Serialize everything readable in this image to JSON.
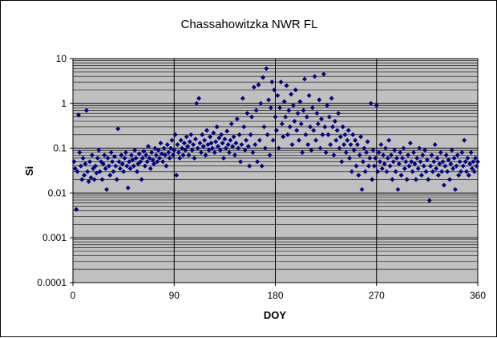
{
  "chart_data": {
    "type": "scatter",
    "title": "Chassahowitzka NWR FL",
    "xlabel": "DOY",
    "ylabel": "Si",
    "xlim": [
      0,
      360
    ],
    "ylim": [
      0.0001,
      10
    ],
    "y_scale": "log",
    "grid": "major and minor horizontal, major vertical",
    "plot_background": "#c0c0c0",
    "marker_color": "#000080",
    "marker_shape": "diamond",
    "x_ticks": [
      "0",
      "90",
      "180",
      "270",
      "360"
    ],
    "y_ticks": [
      "0.0001",
      "0.001",
      "0.01",
      "0.1",
      "1",
      "10"
    ],
    "trend_description": "Values mostly between 0.01 and 0.3 across the year, rising to a peak of 1-6 around DOY 170-230, then falling back after DOY 260.",
    "points": [
      [
        1,
        0.05
      ],
      [
        2,
        0.035
      ],
      [
        3,
        0.0043
      ],
      [
        4,
        0.03
      ],
      [
        5,
        0.55
      ],
      [
        6,
        0.08
      ],
      [
        7,
        0.04
      ],
      [
        8,
        0.02
      ],
      [
        9,
        0.06
      ],
      [
        10,
        0.025
      ],
      [
        11,
        0.045
      ],
      [
        12,
        0.7
      ],
      [
        13,
        0.03
      ],
      [
        14,
        0.018
      ],
      [
        15,
        0.05
      ],
      [
        16,
        0.022
      ],
      [
        17,
        0.07
      ],
      [
        18,
        0.035
      ],
      [
        19,
        0.02
      ],
      [
        20,
        0.04
      ],
      [
        21,
        0.028
      ],
      [
        22,
        0.06
      ],
      [
        23,
        0.09
      ],
      [
        24,
        0.03
      ],
      [
        25,
        0.05
      ],
      [
        26,
        0.02
      ],
      [
        27,
        0.045
      ],
      [
        28,
        0.07
      ],
      [
        29,
        0.035
      ],
      [
        30,
        0.012
      ],
      [
        31,
        0.06
      ],
      [
        32,
        0.04
      ],
      [
        33,
        0.025
      ],
      [
        34,
        0.08
      ],
      [
        35,
        0.05
      ],
      [
        36,
        0.03
      ],
      [
        37,
        0.065
      ],
      [
        38,
        0.04
      ],
      [
        39,
        0.02
      ],
      [
        40,
        0.27
      ],
      [
        41,
        0.05
      ],
      [
        42,
        0.035
      ],
      [
        43,
        0.07
      ],
      [
        44,
        0.045
      ],
      [
        45,
        0.03
      ],
      [
        46,
        0.06
      ],
      [
        47,
        0.08
      ],
      [
        48,
        0.04
      ],
      [
        49,
        0.013
      ],
      [
        50,
        0.05
      ],
      [
        51,
        0.035
      ],
      [
        52,
        0.07
      ],
      [
        53,
        0.055
      ],
      [
        54,
        0.04
      ],
      [
        55,
        0.09
      ],
      [
        56,
        0.06
      ],
      [
        57,
        0.03
      ],
      [
        58,
        0.045
      ],
      [
        59,
        0.075
      ],
      [
        60,
        0.05
      ],
      [
        61,
        0.02
      ],
      [
        62,
        0.06
      ],
      [
        63,
        0.085
      ],
      [
        64,
        0.04
      ],
      [
        65,
        0.07
      ],
      [
        66,
        0.05
      ],
      [
        67,
        0.11
      ],
      [
        68,
        0.06
      ],
      [
        69,
        0.035
      ],
      [
        70,
        0.08
      ],
      [
        71,
        0.055
      ],
      [
        72,
        0.045
      ],
      [
        73,
        0.1
      ],
      [
        74,
        0.07
      ],
      [
        75,
        0.05
      ],
      [
        76,
        0.09
      ],
      [
        77,
        0.06
      ],
      [
        78,
        0.13
      ],
      [
        79,
        0.075
      ],
      [
        80,
        0.05
      ],
      [
        81,
        0.1
      ],
      [
        82,
        0.07
      ],
      [
        83,
        0.04
      ],
      [
        84,
        0.12
      ],
      [
        85,
        0.08
      ],
      [
        86,
        0.06
      ],
      [
        87,
        0.1
      ],
      [
        88,
        0.15
      ],
      [
        89,
        0.07
      ],
      [
        90,
        0.09
      ],
      [
        91,
        0.2
      ],
      [
        92,
        0.025
      ],
      [
        93,
        0.12
      ],
      [
        94,
        0.08
      ],
      [
        95,
        0.06
      ],
      [
        96,
        0.15
      ],
      [
        97,
        0.1
      ],
      [
        98,
        0.07
      ],
      [
        99,
        0.13
      ],
      [
        100,
        0.09
      ],
      [
        101,
        0.18
      ],
      [
        102,
        0.11
      ],
      [
        103,
        0.07
      ],
      [
        104,
        0.14
      ],
      [
        105,
        0.2
      ],
      [
        106,
        0.09
      ],
      [
        107,
        0.12
      ],
      [
        108,
        0.06
      ],
      [
        109,
        0.16
      ],
      [
        110,
        1.0
      ],
      [
        111,
        0.1
      ],
      [
        112,
        1.3
      ],
      [
        113,
        0.13
      ],
      [
        114,
        0.08
      ],
      [
        115,
        0.2
      ],
      [
        116,
        0.11
      ],
      [
        117,
        0.15
      ],
      [
        118,
        0.07
      ],
      [
        119,
        0.25
      ],
      [
        120,
        0.12
      ],
      [
        121,
        0.09
      ],
      [
        122,
        0.18
      ],
      [
        123,
        0.13
      ],
      [
        124,
        0.1
      ],
      [
        125,
        0.22
      ],
      [
        126,
        0.08
      ],
      [
        127,
        0.14
      ],
      [
        128,
        0.3
      ],
      [
        129,
        0.11
      ],
      [
        130,
        0.17
      ],
      [
        131,
        0.09
      ],
      [
        132,
        0.2
      ],
      [
        133,
        0.13
      ],
      [
        134,
        0.06
      ],
      [
        135,
        0.16
      ],
      [
        136,
        0.1
      ],
      [
        137,
        0.24
      ],
      [
        138,
        0.12
      ],
      [
        139,
        0.08
      ],
      [
        140,
        0.15
      ],
      [
        141,
        0.35
      ],
      [
        142,
        0.11
      ],
      [
        143,
        0.18
      ],
      [
        144,
        0.07
      ],
      [
        145,
        0.13
      ],
      [
        146,
        0.45
      ],
      [
        147,
        0.1
      ],
      [
        148,
        0.2
      ],
      [
        149,
        0.05
      ],
      [
        150,
        0.12
      ],
      [
        151,
        1.3
      ],
      [
        152,
        0.3
      ],
      [
        153,
        0.09
      ],
      [
        154,
        0.15
      ],
      [
        155,
        0.6
      ],
      [
        156,
        0.11
      ],
      [
        157,
        0.04
      ],
      [
        158,
        0.2
      ],
      [
        159,
        0.5
      ],
      [
        160,
        0.08
      ],
      [
        161,
        2.3
      ],
      [
        162,
        0.12
      ],
      [
        163,
        0.7
      ],
      [
        164,
        0.05
      ],
      [
        165,
        2.6
      ],
      [
        166,
        0.15
      ],
      [
        167,
        1.0
      ],
      [
        168,
        0.04
      ],
      [
        169,
        3.8
      ],
      [
        170,
        0.3
      ],
      [
        171,
        0.1
      ],
      [
        172,
        6.0
      ],
      [
        173,
        0.2
      ],
      [
        174,
        1.2
      ],
      [
        175,
        0.07
      ],
      [
        176,
        0.8
      ],
      [
        177,
        3.0
      ],
      [
        178,
        0.15
      ],
      [
        179,
        2.0
      ],
      [
        180,
        0.5
      ],
      [
        181,
        0.25
      ],
      [
        182,
        1.5
      ],
      [
        183,
        0.1
      ],
      [
        184,
        0.8
      ],
      [
        185,
        3.0
      ],
      [
        186,
        0.35
      ],
      [
        187,
        0.18
      ],
      [
        188,
        1.1
      ],
      [
        189,
        0.5
      ],
      [
        190,
        2.5
      ],
      [
        191,
        0.2
      ],
      [
        192,
        0.7
      ],
      [
        193,
        0.3
      ],
      [
        194,
        1.6
      ],
      [
        195,
        0.12
      ],
      [
        196,
        0.9
      ],
      [
        197,
        0.4
      ],
      [
        198,
        2.0
      ],
      [
        199,
        0.25
      ],
      [
        200,
        0.6
      ],
      [
        201,
        0.15
      ],
      [
        202,
        1.1
      ],
      [
        203,
        0.35
      ],
      [
        204,
        0.08
      ],
      [
        205,
        0.7
      ],
      [
        206,
        3.5
      ],
      [
        207,
        0.2
      ],
      [
        208,
        0.5
      ],
      [
        209,
        0.12
      ],
      [
        210,
        1.5
      ],
      [
        211,
        0.3
      ],
      [
        212,
        0.09
      ],
      [
        213,
        0.8
      ],
      [
        214,
        0.25
      ],
      [
        215,
        4.0
      ],
      [
        216,
        0.15
      ],
      [
        217,
        0.6
      ],
      [
        218,
        0.35
      ],
      [
        219,
        1.2
      ],
      [
        220,
        0.1
      ],
      [
        221,
        0.45
      ],
      [
        222,
        0.2
      ],
      [
        223,
        4.5
      ],
      [
        224,
        0.3
      ],
      [
        225,
        0.08
      ],
      [
        226,
        0.9
      ],
      [
        227,
        0.2
      ],
      [
        228,
        0.5
      ],
      [
        229,
        0.12
      ],
      [
        230,
        1.3
      ],
      [
        231,
        0.3
      ],
      [
        232,
        0.07
      ],
      [
        233,
        0.4
      ],
      [
        234,
        0.15
      ],
      [
        235,
        0.25
      ],
      [
        236,
        0.6
      ],
      [
        237,
        0.1
      ],
      [
        238,
        0.18
      ],
      [
        239,
        0.05
      ],
      [
        240,
        0.3
      ],
      [
        241,
        0.12
      ],
      [
        242,
        0.2
      ],
      [
        243,
        0.08
      ],
      [
        244,
        0.15
      ],
      [
        245,
        0.25
      ],
      [
        246,
        0.06
      ],
      [
        247,
        0.12
      ],
      [
        248,
        0.03
      ],
      [
        249,
        0.2
      ],
      [
        250,
        0.09
      ],
      [
        251,
        0.15
      ],
      [
        252,
        0.04
      ],
      [
        253,
        0.12
      ],
      [
        254,
        0.025
      ],
      [
        255,
        0.07
      ],
      [
        256,
        0.18
      ],
      [
        257,
        0.012
      ],
      [
        258,
        0.05
      ],
      [
        259,
        0.1
      ],
      [
        260,
        0.03
      ],
      [
        261,
        0.08
      ],
      [
        262,
        0.14
      ],
      [
        263,
        0.04
      ],
      [
        264,
        0.06
      ],
      [
        265,
        1.0
      ],
      [
        266,
        0.02
      ],
      [
        267,
        0.09
      ],
      [
        268,
        0.04
      ],
      [
        269,
        0.06
      ],
      [
        270,
        0.9
      ],
      [
        271,
        0.03
      ],
      [
        272,
        0.08
      ],
      [
        273,
        0.05
      ],
      [
        274,
        0.12
      ],
      [
        275,
        0.035
      ],
      [
        276,
        0.07
      ],
      [
        277,
        0.045
      ],
      [
        278,
        0.1
      ],
      [
        279,
        0.03
      ],
      [
        280,
        0.06
      ],
      [
        281,
        0.15
      ],
      [
        282,
        0.04
      ],
      [
        283,
        0.07
      ],
      [
        284,
        0.02
      ],
      [
        285,
        0.05
      ],
      [
        286,
        0.09
      ],
      [
        287,
        0.03
      ],
      [
        288,
        0.06
      ],
      [
        289,
        0.012
      ],
      [
        290,
        0.045
      ],
      [
        291,
        0.08
      ],
      [
        292,
        0.025
      ],
      [
        293,
        0.06
      ],
      [
        294,
        0.1
      ],
      [
        295,
        0.035
      ],
      [
        296,
        0.05
      ],
      [
        297,
        0.02
      ],
      [
        298,
        0.07
      ],
      [
        299,
        0.04
      ],
      [
        300,
        0.13
      ],
      [
        301,
        0.05
      ],
      [
        302,
        0.03
      ],
      [
        303,
        0.08
      ],
      [
        304,
        0.045
      ],
      [
        305,
        0.02
      ],
      [
        306,
        0.06
      ],
      [
        307,
        0.035
      ],
      [
        308,
        0.1
      ],
      [
        309,
        0.05
      ],
      [
        310,
        0.025
      ],
      [
        311,
        0.07
      ],
      [
        312,
        0.04
      ],
      [
        313,
        0.09
      ],
      [
        314,
        0.03
      ],
      [
        315,
        0.055
      ],
      [
        316,
        0.02
      ],
      [
        317,
        0.0068
      ],
      [
        318,
        0.04
      ],
      [
        319,
        0.07
      ],
      [
        320,
        0.03
      ],
      [
        321,
        0.05
      ],
      [
        322,
        0.12
      ],
      [
        323,
        0.035
      ],
      [
        324,
        0.06
      ],
      [
        325,
        0.025
      ],
      [
        326,
        0.045
      ],
      [
        327,
        0.08
      ],
      [
        328,
        0.03
      ],
      [
        329,
        0.05
      ],
      [
        330,
        0.015
      ],
      [
        331,
        0.04
      ],
      [
        332,
        0.07
      ],
      [
        333,
        0.03
      ],
      [
        334,
        0.055
      ],
      [
        335,
        0.02
      ],
      [
        336,
        0.045
      ],
      [
        337,
        0.09
      ],
      [
        338,
        0.035
      ],
      [
        339,
        0.06
      ],
      [
        340,
        0.012
      ],
      [
        341,
        0.04
      ],
      [
        342,
        0.07
      ],
      [
        343,
        0.025
      ],
      [
        344,
        0.05
      ],
      [
        345,
        0.03
      ],
      [
        346,
        0.08
      ],
      [
        347,
        0.04
      ],
      [
        348,
        0.15
      ],
      [
        349,
        0.05
      ],
      [
        350,
        0.03
      ],
      [
        351,
        0.06
      ],
      [
        352,
        0.025
      ],
      [
        353,
        0.045
      ],
      [
        354,
        0.08
      ],
      [
        355,
        0.035
      ],
      [
        356,
        0.05
      ],
      [
        357,
        0.03
      ],
      [
        358,
        0.06
      ],
      [
        359,
        0.04
      ],
      [
        360,
        0.05
      ]
    ]
  }
}
